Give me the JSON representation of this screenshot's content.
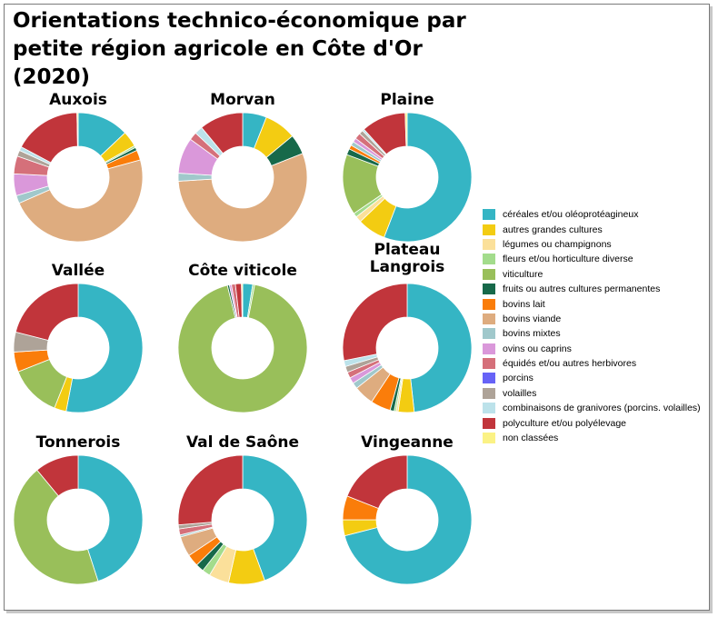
{
  "chart_data": {
    "type": "pie",
    "title": "Orientations technico-économique par petite région agricole en Côte d'Or (2020)",
    "categories": [
      "céréales et/ou oléoprotéagineux",
      "autres grandes cultures",
      "légumes ou champignons",
      "fleurs et/ou horticulture diverse",
      "viticulture",
      "fruits ou autres cultures permanentes",
      "bovins lait",
      "bovins viande",
      "bovins mixtes",
      "ovins ou caprins",
      "équidés et/ou autres herbivores",
      "porcins",
      "volailles",
      "combinaisons de granivores (porcins. volailles)",
      "polyculture et/ou polyélevage",
      "non classées"
    ],
    "colors": [
      "#35b5c4",
      "#f3cc12",
      "#fbe09a",
      "#a3dc8c",
      "#99bf5a",
      "#17694a",
      "#fa7d0a",
      "#deac7f",
      "#a0c8cb",
      "#da98da",
      "#d5707a",
      "#6763f7",
      "#aea398",
      "#bce2ea",
      "#c1353b",
      "#fbf285"
    ],
    "legend_position": "right",
    "regions": [
      {
        "name": "Auxois",
        "values": [
          13,
          4,
          0,
          0.5,
          0,
          0.8,
          2.5,
          48,
          2,
          5.5,
          4.5,
          0,
          1.5,
          1,
          17,
          0.3
        ]
      },
      {
        "name": "Morvan",
        "values": [
          6,
          8,
          0,
          0,
          0,
          5,
          0,
          55,
          2,
          9,
          2,
          0,
          0,
          2,
          11,
          0
        ]
      },
      {
        "name": "Plaine",
        "values": [
          55,
          7,
          1.5,
          1,
          15,
          1.5,
          1,
          0,
          1,
          1,
          1.5,
          0,
          1,
          0.5,
          11,
          0.5
        ]
      },
      {
        "name": "Vallée",
        "values": [
          53,
          3,
          0,
          0,
          13,
          0,
          5,
          0,
          0,
          0,
          0,
          0,
          5,
          0,
          21,
          0
        ]
      },
      {
        "name": "Côte viticole",
        "values": [
          2.5,
          0,
          0,
          0.5,
          93,
          0.5,
          0,
          0,
          0,
          0.5,
          1,
          0,
          0,
          0,
          1.5,
          0.3
        ]
      },
      {
        "name": "Plateau Langrois",
        "values": [
          48,
          4,
          0.5,
          0.5,
          0,
          1,
          5,
          5,
          1.5,
          1.5,
          1.5,
          0,
          1.5,
          1.5,
          28,
          0
        ]
      },
      {
        "name": "Tonnerois",
        "values": [
          45,
          0,
          0,
          0,
          44,
          0,
          0,
          0,
          0,
          0,
          0,
          0,
          0,
          0,
          11,
          0
        ]
      },
      {
        "name": "Val de Saône",
        "values": [
          44,
          9,
          5,
          2,
          0,
          2,
          3,
          5,
          0.5,
          0,
          1.5,
          0,
          1,
          0,
          26,
          0
        ]
      },
      {
        "name": "Vingeanne",
        "values": [
          71,
          4,
          0,
          0,
          0,
          0,
          6,
          0,
          0,
          0,
          0,
          0,
          0,
          0,
          19,
          0
        ]
      }
    ]
  }
}
